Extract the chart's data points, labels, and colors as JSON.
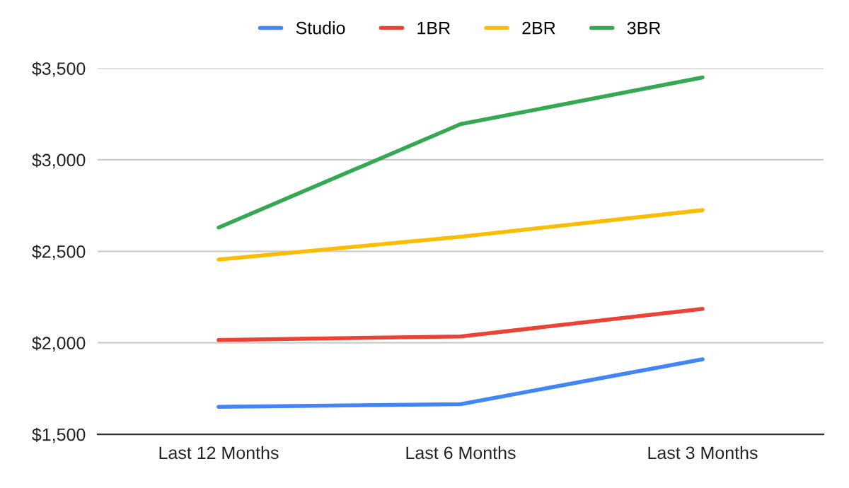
{
  "chart_data": {
    "type": "line",
    "categories": [
      "Last 12 Months",
      "Last 6 Months",
      "Last 3 Months"
    ],
    "series": [
      {
        "name": "Studio",
        "color": "#4285f4",
        "values": [
          1650,
          1665,
          1910
        ]
      },
      {
        "name": "1BR",
        "color": "#ea4335",
        "values": [
          2015,
          2035,
          2185
        ]
      },
      {
        "name": "2BR",
        "color": "#fbbc04",
        "values": [
          2455,
          2580,
          2725
        ]
      },
      {
        "name": "3BR",
        "color": "#34a853",
        "values": [
          2630,
          3195,
          3450
        ]
      }
    ],
    "ylim": [
      1500,
      3500
    ],
    "yticks": [
      {
        "value": 1500,
        "label": "$1,500"
      },
      {
        "value": 2000,
        "label": "$2,000"
      },
      {
        "value": 2500,
        "label": "$2,500"
      },
      {
        "value": 3000,
        "label": "$3,000"
      },
      {
        "value": 3500,
        "label": "$3,500"
      }
    ],
    "grid": "y",
    "legend": "top",
    "marker": "none",
    "line_style": "solid"
  }
}
